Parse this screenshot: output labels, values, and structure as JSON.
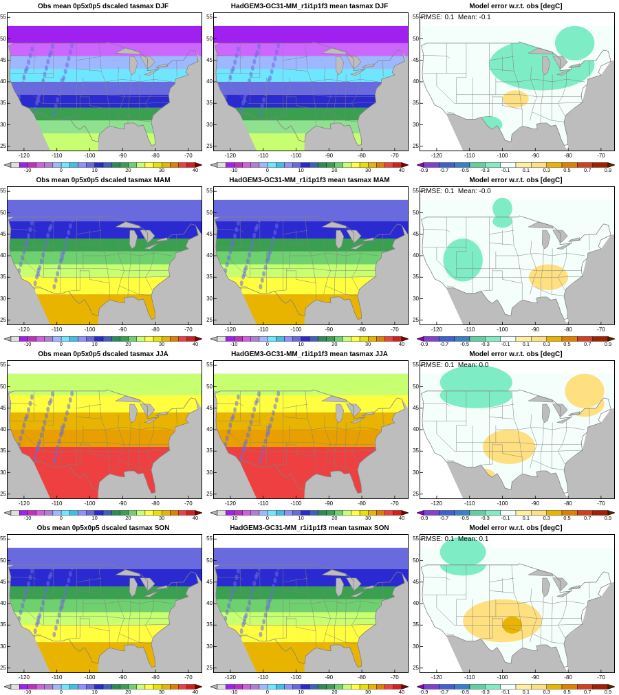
{
  "rows": [
    {
      "season": "DJF",
      "obs_title": "Obs mean 0p5x0p5 dscaled tasmax DJF",
      "model_title": "HadGEM3-GC31-MM_r1i1p1f3 mean tasmax DJF",
      "error_title": "Model error w.r.t. obs [degC]",
      "rmse_text": "RMSE: 0.1",
      "mean_text": "Mean: -0.1",
      "temp_bands": [
        {
          "lat_from": 49,
          "lat_to": 53,
          "color": "#a020f0"
        },
        {
          "lat_from": 46,
          "lat_to": 49,
          "color": "#cc66ff"
        },
        {
          "lat_from": 43,
          "lat_to": 46,
          "color": "#9db8ff"
        },
        {
          "lat_from": 40,
          "lat_to": 43,
          "color": "#6fe6ff"
        },
        {
          "lat_from": 37,
          "lat_to": 40,
          "color": "#6a6adf"
        },
        {
          "lat_from": 34,
          "lat_to": 37,
          "color": "#2a2ad0"
        },
        {
          "lat_from": 31,
          "lat_to": 34,
          "color": "#3aa050"
        },
        {
          "lat_from": 28,
          "lat_to": 31,
          "color": "#8fe08f"
        },
        {
          "lat_from": 24,
          "lat_to": 28,
          "color": "#c8ff70"
        }
      ],
      "error_blobs": [
        {
          "lon": -88,
          "lat": 44,
          "rx": 16,
          "ry": 6,
          "color": "#7eecc4"
        },
        {
          "lon": -78,
          "lat": 46,
          "rx": 6,
          "ry": 3,
          "color": "#7eecc4"
        },
        {
          "lon": -96,
          "lat": 36,
          "rx": 4,
          "ry": 2,
          "color": "#ffe080"
        },
        {
          "lon": -104,
          "lat": 30,
          "rx": 4,
          "ry": 2,
          "color": "#7eecc4"
        }
      ]
    },
    {
      "season": "MAM",
      "obs_title": "Obs mean 0p5x0p5 dscaled tasmax MAM",
      "model_title": "HadGEM3-GC31-MM_r1i1p1f3 mean tasmax MAM",
      "error_title": "Model error w.r.t. obs [degC]",
      "rmse_text": "RMSE: 0.1",
      "mean_text": "Mean: -0.0",
      "temp_bands": [
        {
          "lat_from": 48,
          "lat_to": 53,
          "color": "#6a6adf"
        },
        {
          "lat_from": 44,
          "lat_to": 48,
          "color": "#2a2ad0"
        },
        {
          "lat_from": 41,
          "lat_to": 44,
          "color": "#3aa050"
        },
        {
          "lat_from": 38,
          "lat_to": 41,
          "color": "#6fd06f"
        },
        {
          "lat_from": 35,
          "lat_to": 38,
          "color": "#c8ff70"
        },
        {
          "lat_from": 31,
          "lat_to": 35,
          "color": "#ffff40"
        },
        {
          "lat_from": 24,
          "lat_to": 31,
          "color": "#e8b400"
        }
      ],
      "error_blobs": [
        {
          "lon": -112,
          "lat": 39,
          "rx": 6,
          "ry": 5,
          "color": "#7eecc4"
        },
        {
          "lon": -86,
          "lat": 35,
          "rx": 6,
          "ry": 3,
          "color": "#ffe080"
        },
        {
          "lon": -100,
          "lat": 48,
          "rx": 3,
          "ry": 1.5,
          "color": "#7eecc4"
        }
      ]
    },
    {
      "season": "JJA",
      "obs_title": "Obs mean 0p5x0p5 dscaled tasmax JJA",
      "model_title": "HadGEM3-GC31-MM_r1i1p1f3 mean tasmax JJA",
      "error_title": "Model error w.r.t. obs [degC]",
      "rmse_text": "RMSE: 0.1",
      "mean_text": "Mean: 0.0",
      "temp_bands": [
        {
          "lat_from": 48,
          "lat_to": 53,
          "color": "#c8ff70"
        },
        {
          "lat_from": 44,
          "lat_to": 48,
          "color": "#ffff40"
        },
        {
          "lat_from": 40,
          "lat_to": 44,
          "color": "#e8b400"
        },
        {
          "lat_from": 36,
          "lat_to": 40,
          "color": "#e8a000"
        },
        {
          "lat_from": 24,
          "lat_to": 36,
          "color": "#ee4040"
        }
      ],
      "error_blobs": [
        {
          "lon": -108,
          "lat": 48,
          "rx": 11,
          "ry": 3,
          "color": "#7eecc4"
        },
        {
          "lon": -98,
          "lat": 36,
          "rx": 8,
          "ry": 4,
          "color": "#ffe080"
        },
        {
          "lon": -75,
          "lat": 46,
          "rx": 6,
          "ry": 3,
          "color": "#ffe080"
        },
        {
          "lon": -106,
          "lat": 29,
          "rx": 4,
          "ry": 2,
          "color": "#ffe080"
        }
      ]
    },
    {
      "season": "SON",
      "obs_title": "Obs mean 0p5x0p5 dscaled tasmax SON",
      "model_title": "HadGEM3-GC31-MM_r1i1p1f3 mean tasmax SON",
      "error_title": "Model error w.r.t. obs [degC]",
      "rmse_text": "RMSE: 0.1",
      "mean_text": "Mean: 0.1",
      "temp_bands": [
        {
          "lat_from": 48,
          "lat_to": 53,
          "color": "#6a6adf"
        },
        {
          "lat_from": 44,
          "lat_to": 48,
          "color": "#2a2ad0"
        },
        {
          "lat_from": 41,
          "lat_to": 44,
          "color": "#3aa050"
        },
        {
          "lat_from": 38,
          "lat_to": 41,
          "color": "#6fd06f"
        },
        {
          "lat_from": 35,
          "lat_to": 38,
          "color": "#c8ff70"
        },
        {
          "lat_from": 31,
          "lat_to": 35,
          "color": "#ffff40"
        },
        {
          "lat_from": 24,
          "lat_to": 31,
          "color": "#e8b400"
        }
      ],
      "error_blobs": [
        {
          "lon": -112,
          "lat": 49,
          "rx": 7,
          "ry": 2.5,
          "color": "#7eecc4"
        },
        {
          "lon": -100,
          "lat": 36,
          "rx": 12,
          "ry": 5,
          "color": "#ffe080"
        },
        {
          "lon": -97,
          "lat": 35,
          "rx": 3,
          "ry": 2,
          "color": "#e8b400"
        }
      ]
    }
  ],
  "map": {
    "lon_range": [
      -125,
      -66
    ],
    "lat_range": [
      24,
      56
    ],
    "xticks": [
      -120,
      -110,
      -100,
      -90,
      -80,
      -70
    ],
    "yticks": [
      25,
      30,
      35,
      40,
      45,
      50,
      55
    ],
    "ocean_color": "#bdbdbd",
    "error_background_color": "#f4fffb",
    "border_color": "#808080"
  },
  "temp_colorbar": {
    "colors": [
      "#b8b8b8",
      "#e0e0e0",
      "#a020f0",
      "#c030c0",
      "#d060e0",
      "#b080d0",
      "#9db8ff",
      "#6fe6ff",
      "#40c0e0",
      "#9090ff",
      "#6a6adf",
      "#2a2ad0",
      "#4060c0",
      "#2e8b57",
      "#3aa050",
      "#6fd06f",
      "#c8ff70",
      "#ffff40",
      "#e8e000",
      "#e8b400",
      "#e08000",
      "#ee4040",
      "#d02020",
      "#800000"
    ],
    "ticks": [
      "-10",
      "0",
      "10",
      "20",
      "30",
      "40"
    ]
  },
  "error_colorbar": {
    "colors": [
      "#9000c0",
      "#8040d0",
      "#4060d0",
      "#3a80c8",
      "#60d0a0",
      "#7eecc4",
      "#f4fffb",
      "#fff0a0",
      "#ffe080",
      "#e8b400",
      "#e08000",
      "#d04020",
      "#a02000",
      "#602000"
    ],
    "ticks": [
      "-0.9",
      "-0.7",
      "-0.5",
      "-0.3",
      "-0.1",
      "0.1",
      "0.3",
      "0.5",
      "0.7",
      "0.9"
    ]
  }
}
